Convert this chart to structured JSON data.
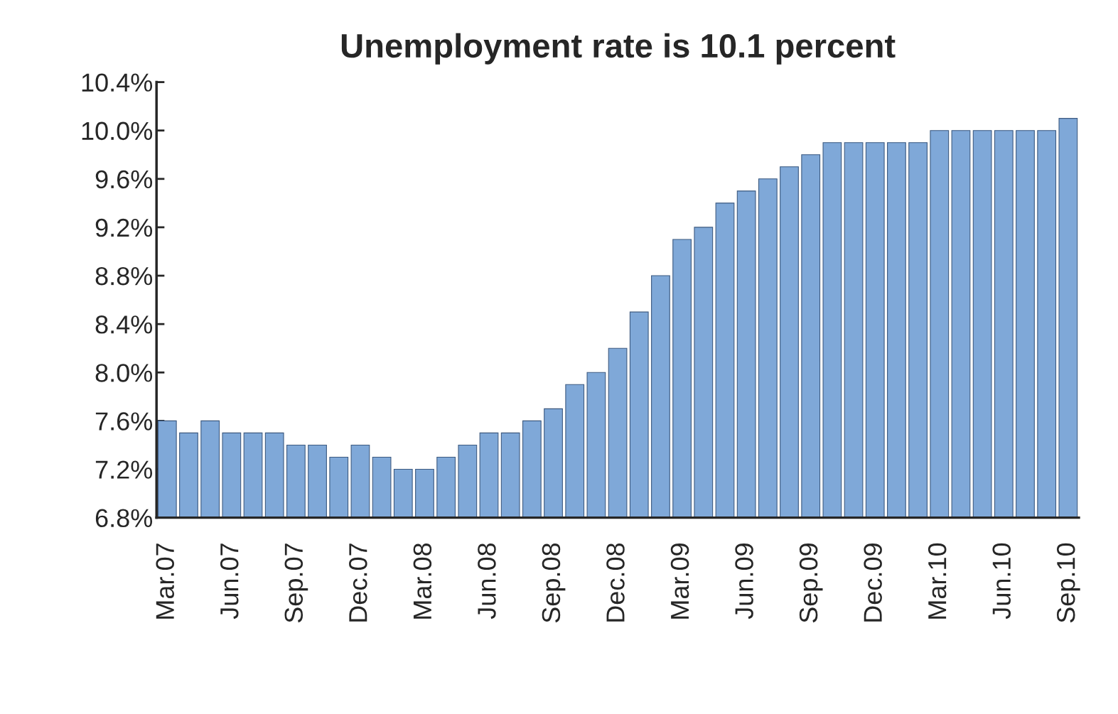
{
  "chart_data": {
    "type": "bar",
    "title": "Unemployment rate is 10.1 percent",
    "categories": [
      "Mar.07",
      null,
      null,
      "Jun.07",
      null,
      null,
      "Sep.07",
      null,
      null,
      "Dec.07",
      null,
      null,
      "Mar.08",
      null,
      null,
      "Jun.08",
      null,
      null,
      "Sep.08",
      null,
      null,
      "Dec.08",
      null,
      null,
      "Mar.09",
      null,
      null,
      "Jun.09",
      null,
      null,
      "Sep.09",
      null,
      null,
      "Dec.09",
      null,
      null,
      "Mar.10",
      null,
      null,
      "Jun.10",
      null,
      null,
      "Sep.10"
    ],
    "values": [
      7.6,
      7.5,
      7.6,
      7.5,
      7.5,
      7.5,
      7.4,
      7.4,
      7.3,
      7.4,
      7.3,
      7.2,
      7.2,
      7.3,
      7.4,
      7.5,
      7.5,
      7.6,
      7.7,
      7.9,
      8.0,
      8.2,
      8.5,
      8.8,
      9.1,
      9.2,
      9.4,
      9.5,
      9.6,
      9.7,
      9.8,
      9.9,
      9.9,
      9.9,
      9.9,
      9.9,
      10.0,
      10.0,
      10.0,
      10.0,
      10.0,
      10.0,
      10.1
    ],
    "color": "#7fa8d8",
    "ylim": [
      6.8,
      10.4
    ],
    "yticks": [
      {
        "value": 6.8,
        "label": "6.8%"
      },
      {
        "value": 7.2,
        "label": "7.2%"
      },
      {
        "value": 7.6,
        "label": "7.6%"
      },
      {
        "value": 8.0,
        "label": "8.0%"
      },
      {
        "value": 8.4,
        "label": "8.4%"
      },
      {
        "value": 8.8,
        "label": "8.8%"
      },
      {
        "value": 9.2,
        "label": "9.2%"
      },
      {
        "value": 9.6,
        "label": "9.6%"
      },
      {
        "value": 10.0,
        "label": "10.0%"
      },
      {
        "value": 10.4,
        "label": "10.4%"
      }
    ],
    "grid": false
  }
}
